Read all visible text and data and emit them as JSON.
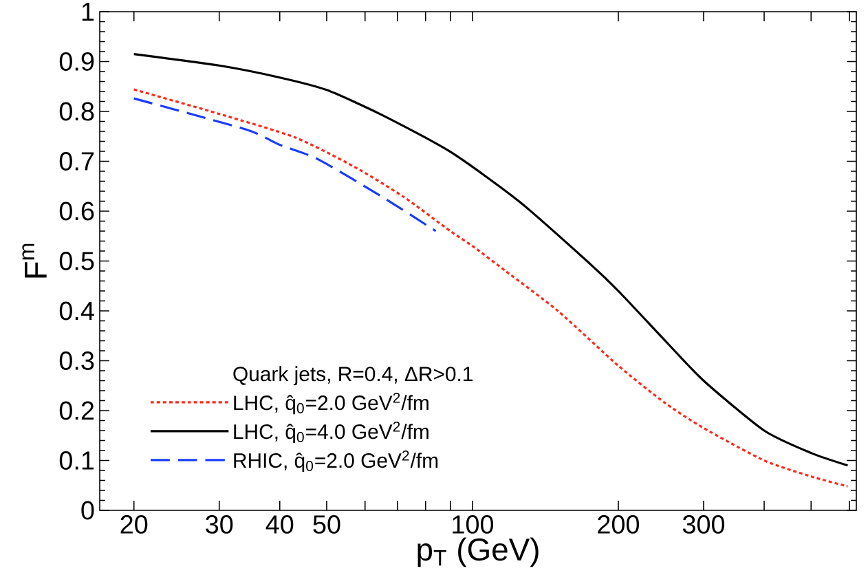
{
  "chart_data": {
    "type": "line",
    "xlabel": "p$_{T}$ (GeV)",
    "ylabel": "F$^{m}$",
    "legend_title": "Quark jets, R=0.4, ΔR>0.1",
    "log": "x",
    "legend": "bottom left",
    "xlim": [
      17,
      620
    ],
    "ylim": [
      0,
      1
    ],
    "xticks": [
      20,
      30,
      40,
      50,
      {
        "value": 60,
        "label": null
      },
      {
        "value": 70,
        "label": null
      },
      {
        "value": 80,
        "label": null
      },
      {
        "value": 90,
        "label": null
      },
      100,
      200,
      300,
      {
        "value": 400,
        "label": null
      },
      {
        "value": 500,
        "label": null
      },
      {
        "value": 600,
        "label": null
      }
    ],
    "yticks": [
      0,
      0.1,
      0.2,
      0.3,
      0.4,
      0.5,
      0.6,
      0.7,
      0.8,
      0.9,
      1
    ],
    "series": [
      {
        "name": "LHC, q̂$_{0}$=2.0 GeV$^{2}$/fm",
        "color": "#ff2a1a",
        "line_style": "dotted",
        "x": [
          20,
          30,
          43,
          57,
          72,
          90,
          100,
          117,
          150,
          200,
          250,
          300,
          400,
          500,
          595
        ],
        "values": [
          0.844,
          0.795,
          0.748,
          0.689,
          0.629,
          0.56,
          0.53,
          0.48,
          0.4,
          0.29,
          0.215,
          0.165,
          0.1,
          0.068,
          0.048
        ]
      },
      {
        "name": "LHC, q̂$_{0}$=4.0 GeV$^{2}$/fm",
        "color": "#000000",
        "line_style": "solid",
        "x": [
          20,
          30,
          40,
          50,
          65,
          90,
          125,
          175,
          200,
          250,
          300,
          400,
          500,
          595
        ],
        "values": [
          0.915,
          0.892,
          0.868,
          0.843,
          0.793,
          0.719,
          0.619,
          0.494,
          0.44,
          0.34,
          0.26,
          0.16,
          0.115,
          0.09
        ]
      },
      {
        "name": "RHIC, q̂$_{0}$=2.0 GeV$^{2}$/fm",
        "color": "#1a3cff",
        "line_style": "dashed",
        "x": [
          20,
          34,
          40,
          48,
          65,
          84
        ],
        "values": [
          0.826,
          0.764,
          0.733,
          0.704,
          0.629,
          0.56
        ]
      }
    ]
  }
}
